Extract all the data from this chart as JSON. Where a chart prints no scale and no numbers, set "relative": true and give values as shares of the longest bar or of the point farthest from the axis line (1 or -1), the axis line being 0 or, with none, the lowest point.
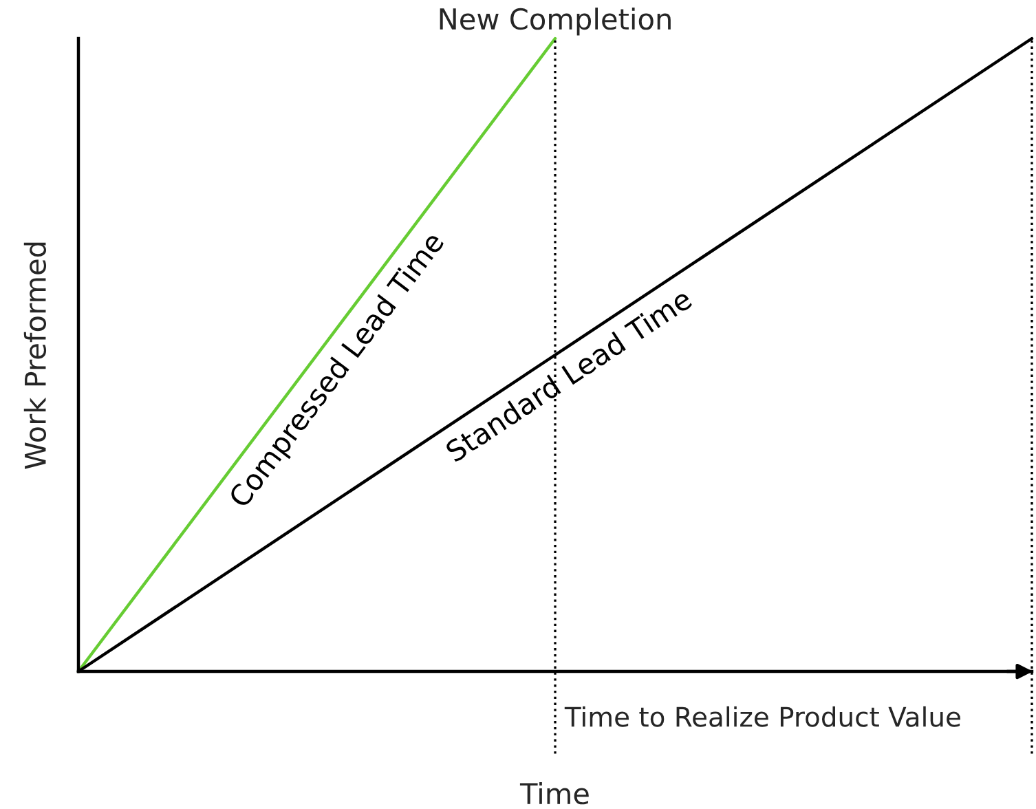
{
  "chart_data": {
    "type": "line",
    "relative": true,
    "xlabel": "Time",
    "ylabel": "Work Preformed",
    "categories": [
      null,
      null,
      null
    ],
    "series": [
      {
        "name": "Compressed Lead Time",
        "color": "#66cc33",
        "values": [
          0,
          1,
          null
        ]
      },
      {
        "name": "Standard Lead Time",
        "color": "#000000",
        "values": [
          0,
          0.5,
          1
        ]
      }
    ],
    "annotations": [
      "New Completion",
      "Time to Realize Product Value"
    ],
    "marker": "none",
    "line_style": "solid"
  }
}
